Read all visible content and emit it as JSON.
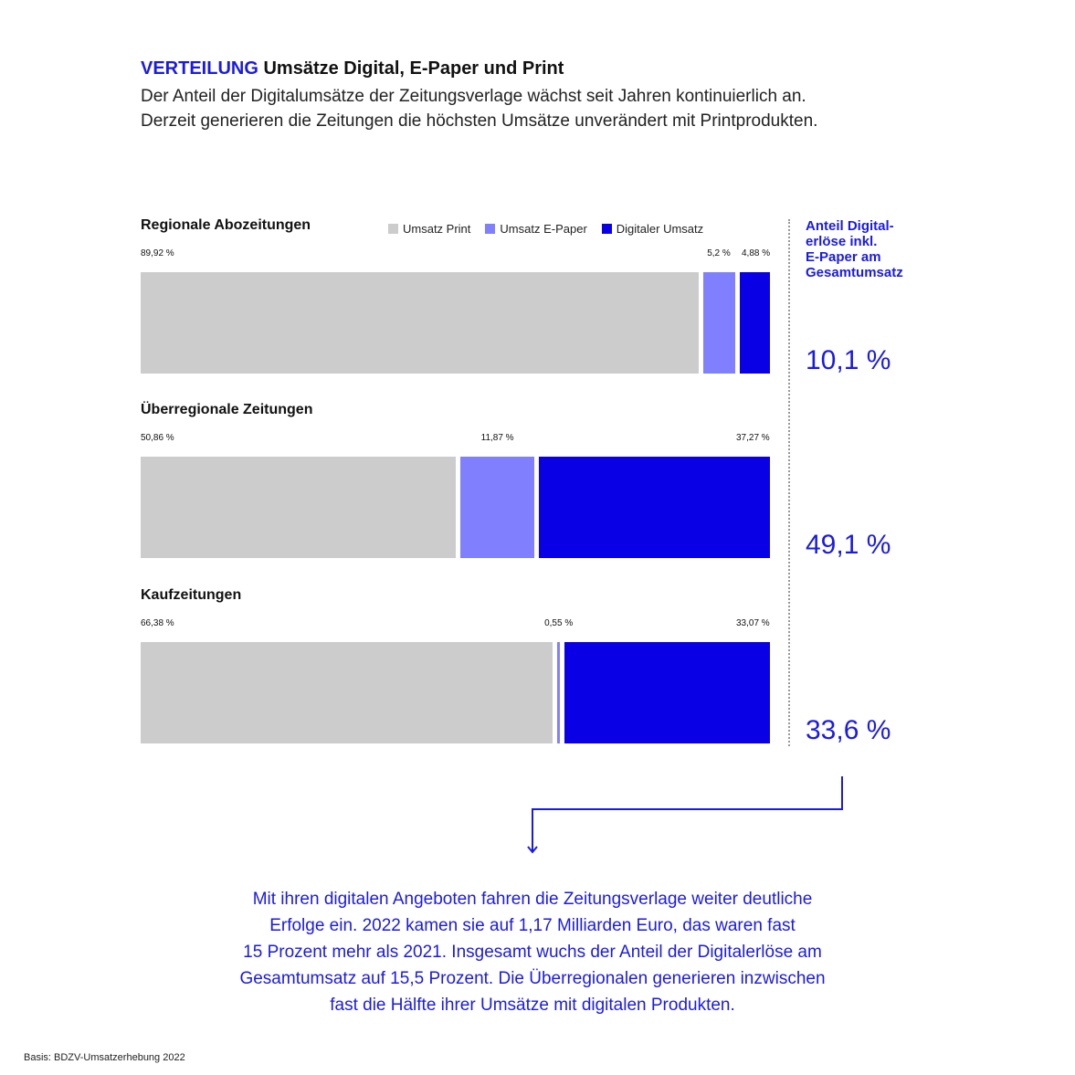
{
  "header": {
    "kicker": "VERTEILUNG",
    "title": "Umsätze Digital, E-Paper und Print",
    "subtitle_lines": [
      "Der Anteil der Digitalumsätze der Zeitungsverlage wächst seit Jahren kontinuierlich an.",
      "Derzeit generieren die Zeitungen die höchsten Umsätze unverändert mit Printprodukten."
    ]
  },
  "colors": {
    "print": "#cccccc",
    "epaper": "#8080ff",
    "digital": "#0a00e6",
    "accent": "#1a1ae6"
  },
  "side_header": [
    "Anteil Digital-",
    "erlöse inkl.",
    "E-Paper am",
    "Gesamtumsatz"
  ],
  "chart_data": {
    "type": "bar",
    "orientation": "horizontal-stacked",
    "legend": {
      "placement": "top",
      "entries": [
        "Umsatz Print",
        "Umsatz E-Paper",
        "Digitaler Umsatz"
      ]
    },
    "series": [
      {
        "name": "Umsatz Print",
        "values": [
          89.92,
          50.86,
          66.38
        ]
      },
      {
        "name": "Umsatz E-Paper",
        "values": [
          5.2,
          11.87,
          0.55
        ]
      },
      {
        "name": "Digitaler Umsatz",
        "values": [
          4.88,
          37.27,
          33.07
        ]
      }
    ],
    "categories": [
      "Regionale Abozeitungen",
      "Überregionale Zeitungen",
      "Kaufzeitungen"
    ],
    "value_labels": [
      [
        "89,92 %",
        "5,2 %",
        "4,88 %"
      ],
      [
        "50,86 %",
        "11,87 %",
        "37,27 %"
      ],
      [
        "66,38 %",
        "0,55 %",
        "33,07 %"
      ]
    ],
    "digital_share_labels": [
      "10,1 %",
      "49,1 %",
      "33,6 %"
    ],
    "digital_share_values": [
      10.1,
      49.1,
      33.6
    ],
    "unit": "%",
    "xlim": [
      0,
      100
    ]
  },
  "note_lines": [
    "Mit ihren digitalen Angeboten fahren die Zeitungsverlage weiter deutliche",
    "Erfolge ein. 2022 kamen sie auf 1,17 Milliarden Euro, das waren fast",
    "15 Prozent mehr als 2021. Insgesamt wuchs der Anteil der Digitalerlöse am",
    "Gesamtumsatz auf 15,5 Prozent. Die Überregionalen generieren inzwischen",
    "fast die Hälfte ihrer Umsätze mit digitalen Produkten."
  ],
  "source": "Basis: BDZV-Umsatzerhebung 2022"
}
